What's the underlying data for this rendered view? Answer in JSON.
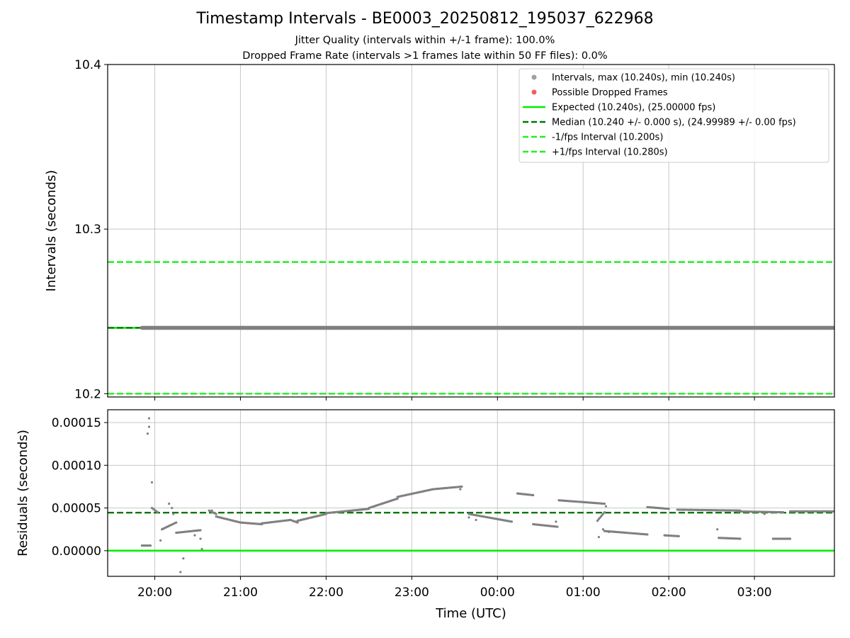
{
  "figure": {
    "title": "Timestamp Intervals - BE0003_20250812_195037_622968",
    "subtitle_lines": [
      "Jitter Quality (intervals within +/-1 frame): 100.0%",
      "Dropped Frame Rate (intervals >1 frames late within 50 FF files): 0.0%"
    ],
    "xlabel": "Time (UTC)"
  },
  "chart_data": [
    {
      "type": "scatter",
      "ylabel": "Intervals (seconds)",
      "ylim": [
        10.198,
        10.4
      ],
      "xlim": [
        "2025-08-12 19:27",
        "2025-08-13 03:56"
      ],
      "yticks": [
        "10.2",
        "10.3",
        "10.4"
      ],
      "grid": true,
      "legend_placement": "top-right",
      "legend": [
        {
          "label": "Intervals, max (10.240s), min (10.240s)",
          "marker": "dot",
          "color": "#a0a0a0"
        },
        {
          "label": "Possible Dropped Frames",
          "marker": "dot",
          "color": "#f06060"
        },
        {
          "label": "Expected (10.240s), (25.00000 fps)",
          "marker": "solid-line",
          "color": "#00ee00"
        },
        {
          "label": "Median (10.240 +/- 0.000 s), (24.99989 +/- 0.00 fps)",
          "marker": "dashed-line",
          "color": "#007700"
        },
        {
          "label": "-1/fps Interval (10.200s)",
          "marker": "dashed-line",
          "color": "#22ee22"
        },
        {
          "label": "+1/fps Interval (10.280s)",
          "marker": "dashed-line",
          "color": "#22ee22"
        }
      ],
      "reference_lines": [
        {
          "name": "Expected",
          "y": 10.24,
          "style": "solid",
          "color": "#00ee00"
        },
        {
          "name": "Median",
          "y": 10.24,
          "style": "dashed",
          "color": "#007700"
        },
        {
          "name": "-1/fps Interval",
          "y": 10.2,
          "style": "dashed",
          "color": "#22ee22"
        },
        {
          "name": "+1/fps Interval",
          "y": 10.28,
          "style": "dashed",
          "color": "#22ee22"
        }
      ],
      "series": [
        {
          "name": "Intervals",
          "color": "#808080",
          "x_start": "2025-08-12 19:51",
          "x_end": "2025-08-13 03:56",
          "y": 10.24
        }
      ]
    },
    {
      "type": "scatter",
      "ylabel": "Residuals (seconds)",
      "ylim": [
        -3e-05,
        0.000165
      ],
      "xlim": [
        "2025-08-12 19:27",
        "2025-08-13 03:56"
      ],
      "yticks": [
        "0.00000",
        "0.00005",
        "0.00010",
        "0.00015"
      ],
      "grid": true,
      "reference_lines": [
        {
          "name": "Expected",
          "y": 0.0,
          "style": "solid",
          "color": "#00ee00"
        },
        {
          "name": "Median",
          "y": 4.45e-05,
          "style": "dashed",
          "color": "#007700"
        }
      ],
      "series": [
        {
          "name": "Residuals",
          "color": "#808080",
          "segments": [
            {
              "x": [
                "2025-08-12 19:51",
                "2025-08-12 19:57"
              ],
              "y": [
                6e-06,
                6e-06
              ]
            },
            {
              "x": [
                "2025-08-12 19:58",
                "2025-08-12 20:02"
              ],
              "y": [
                5e-05,
                4.5e-05
              ]
            },
            {
              "x": [
                "2025-08-12 20:05",
                "2025-08-12 20:15"
              ],
              "y": [
                2.5e-05,
                3.3e-05
              ]
            },
            {
              "x": [
                "2025-08-12 20:15",
                "2025-08-12 20:32"
              ],
              "y": [
                2.1e-05,
                2.4e-05
              ]
            },
            {
              "x": [
                "2025-08-12 20:38",
                "2025-08-12 20:43"
              ],
              "y": [
                4.7e-05,
                4.3e-05
              ]
            },
            {
              "x": [
                "2025-08-12 20:43",
                "2025-08-12 21:00"
              ],
              "y": [
                4e-05,
                3.3e-05
              ]
            },
            {
              "x": [
                "2025-08-12 21:00",
                "2025-08-12 21:15"
              ],
              "y": [
                3.3e-05,
                3.1e-05
              ]
            },
            {
              "x": [
                "2025-08-12 21:15",
                "2025-08-12 21:35"
              ],
              "y": [
                3.2e-05,
                3.6e-05
              ]
            },
            {
              "x": [
                "2025-08-12 21:35",
                "2025-08-12 21:40"
              ],
              "y": [
                3.6e-05,
                3.3e-05
              ]
            },
            {
              "x": [
                "2025-08-12 21:40",
                "2025-08-12 22:00"
              ],
              "y": [
                3.5e-05,
                4.3e-05
              ]
            },
            {
              "x": [
                "2025-08-12 22:00",
                "2025-08-12 22:30"
              ],
              "y": [
                4.4e-05,
                4.9e-05
              ]
            },
            {
              "x": [
                "2025-08-12 22:30",
                "2025-08-12 22:50"
              ],
              "y": [
                5e-05,
                6.1e-05
              ]
            },
            {
              "x": [
                "2025-08-12 22:50",
                "2025-08-12 23:15"
              ],
              "y": [
                6.3e-05,
                7.2e-05
              ]
            },
            {
              "x": [
                "2025-08-12 23:15",
                "2025-08-12 23:35"
              ],
              "y": [
                7.2e-05,
                7.5e-05
              ]
            },
            {
              "x": [
                "2025-08-12 23:40",
                "2025-08-13 00:10"
              ],
              "y": [
                4.3e-05,
                3.4e-05
              ]
            },
            {
              "x": [
                "2025-08-13 00:14",
                "2025-08-13 00:25"
              ],
              "y": [
                6.7e-05,
                6.5e-05
              ]
            },
            {
              "x": [
                "2025-08-13 00:25",
                "2025-08-13 00:42"
              ],
              "y": [
                3.1e-05,
                2.8e-05
              ]
            },
            {
              "x": [
                "2025-08-13 00:43",
                "2025-08-13 01:15"
              ],
              "y": [
                5.9e-05,
                5.5e-05
              ]
            },
            {
              "x": [
                "2025-08-13 01:10",
                "2025-08-13 01:15"
              ],
              "y": [
                3.5e-05,
                4.5e-05
              ]
            },
            {
              "x": [
                "2025-08-13 01:15",
                "2025-08-13 01:45"
              ],
              "y": [
                2.3e-05,
                1.9e-05
              ]
            },
            {
              "x": [
                "2025-08-13 01:45",
                "2025-08-13 02:00"
              ],
              "y": [
                5.1e-05,
                4.9e-05
              ]
            },
            {
              "x": [
                "2025-08-13 01:57",
                "2025-08-13 02:07"
              ],
              "y": [
                1.8e-05,
                1.7e-05
              ]
            },
            {
              "x": [
                "2025-08-13 02:06",
                "2025-08-13 02:50"
              ],
              "y": [
                4.8e-05,
                4.7e-05
              ]
            },
            {
              "x": [
                "2025-08-13 02:35",
                "2025-08-13 02:50"
              ],
              "y": [
                1.5e-05,
                1.4e-05
              ]
            },
            {
              "x": [
                "2025-08-13 02:48",
                "2025-08-13 03:20"
              ],
              "y": [
                4.6e-05,
                4.5e-05
              ]
            },
            {
              "x": [
                "2025-08-13 03:13",
                "2025-08-13 03:25"
              ],
              "y": [
                1.4e-05,
                1.4e-05
              ]
            },
            {
              "x": [
                "2025-08-13 03:25",
                "2025-08-13 03:56"
              ],
              "y": [
                4.6e-05,
                4.6e-05
              ]
            }
          ],
          "scattered_points": [
            {
              "x": "2025-08-12 19:56",
              "y": 0.000155
            },
            {
              "x": "2025-08-12 19:56",
              "y": 0.000145
            },
            {
              "x": "2025-08-12 19:55",
              "y": 0.000137
            },
            {
              "x": "2025-08-12 19:58",
              "y": 8e-05
            },
            {
              "x": "2025-08-12 20:04",
              "y": 1.2e-05
            },
            {
              "x": "2025-08-12 20:10",
              "y": 5.5e-05
            },
            {
              "x": "2025-08-12 20:12",
              "y": 5e-05
            },
            {
              "x": "2025-08-12 20:13",
              "y": 4.3e-05
            },
            {
              "x": "2025-08-12 20:18",
              "y": -2.5e-05
            },
            {
              "x": "2025-08-12 20:20",
              "y": -9e-06
            },
            {
              "x": "2025-08-12 20:28",
              "y": 1.8e-05
            },
            {
              "x": "2025-08-12 20:32",
              "y": 1.4e-05
            },
            {
              "x": "2025-08-12 20:33",
              "y": 2e-06
            },
            {
              "x": "2025-08-12 20:40",
              "y": 4.7e-05
            },
            {
              "x": "2025-08-12 23:34",
              "y": 7.2e-05
            },
            {
              "x": "2025-08-12 23:40",
              "y": 3.9e-05
            },
            {
              "x": "2025-08-12 23:45",
              "y": 3.6e-05
            },
            {
              "x": "2025-08-13 00:41",
              "y": 3.4e-05
            },
            {
              "x": "2025-08-13 01:11",
              "y": 1.6e-05
            },
            {
              "x": "2025-08-13 01:14",
              "y": 2.5e-05
            },
            {
              "x": "2025-08-13 01:16",
              "y": 5.2e-05
            },
            {
              "x": "2025-08-13 01:18",
              "y": 2.2e-05
            },
            {
              "x": "2025-08-13 02:34",
              "y": 2.5e-05
            },
            {
              "x": "2025-08-13 03:07",
              "y": 4.3e-05
            }
          ]
        }
      ]
    }
  ],
  "xticks": [
    "20:00",
    "21:00",
    "22:00",
    "23:00",
    "00:00",
    "01:00",
    "02:00",
    "03:00"
  ]
}
